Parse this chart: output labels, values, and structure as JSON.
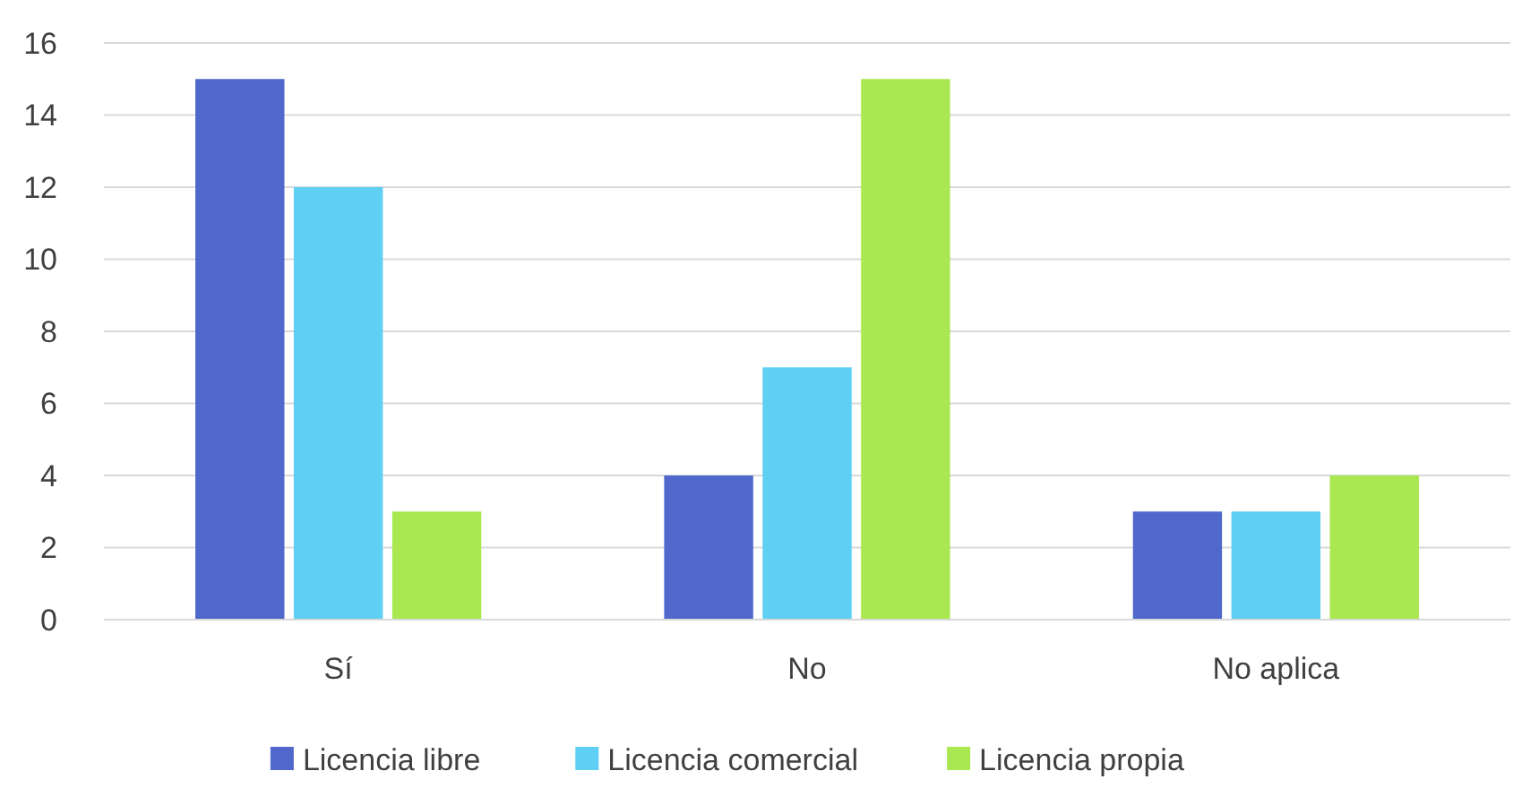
{
  "chart_data": {
    "type": "bar",
    "categories": [
      "Sí",
      "No",
      "No aplica"
    ],
    "series": [
      {
        "name": "Licencia libre",
        "color": "#5068cc",
        "values": [
          15,
          4,
          3
        ]
      },
      {
        "name": "Licencia comercial",
        "color": "#5fcff4",
        "values": [
          12,
          7,
          3
        ]
      },
      {
        "name": "Licencia propia",
        "color": "#a9e851",
        "values": [
          3,
          15,
          4
        ]
      }
    ],
    "ylim": [
      0,
      16
    ],
    "yticks": [
      0,
      2,
      4,
      6,
      8,
      10,
      12,
      14,
      16
    ],
    "grid": "y",
    "legend": "bottom"
  }
}
